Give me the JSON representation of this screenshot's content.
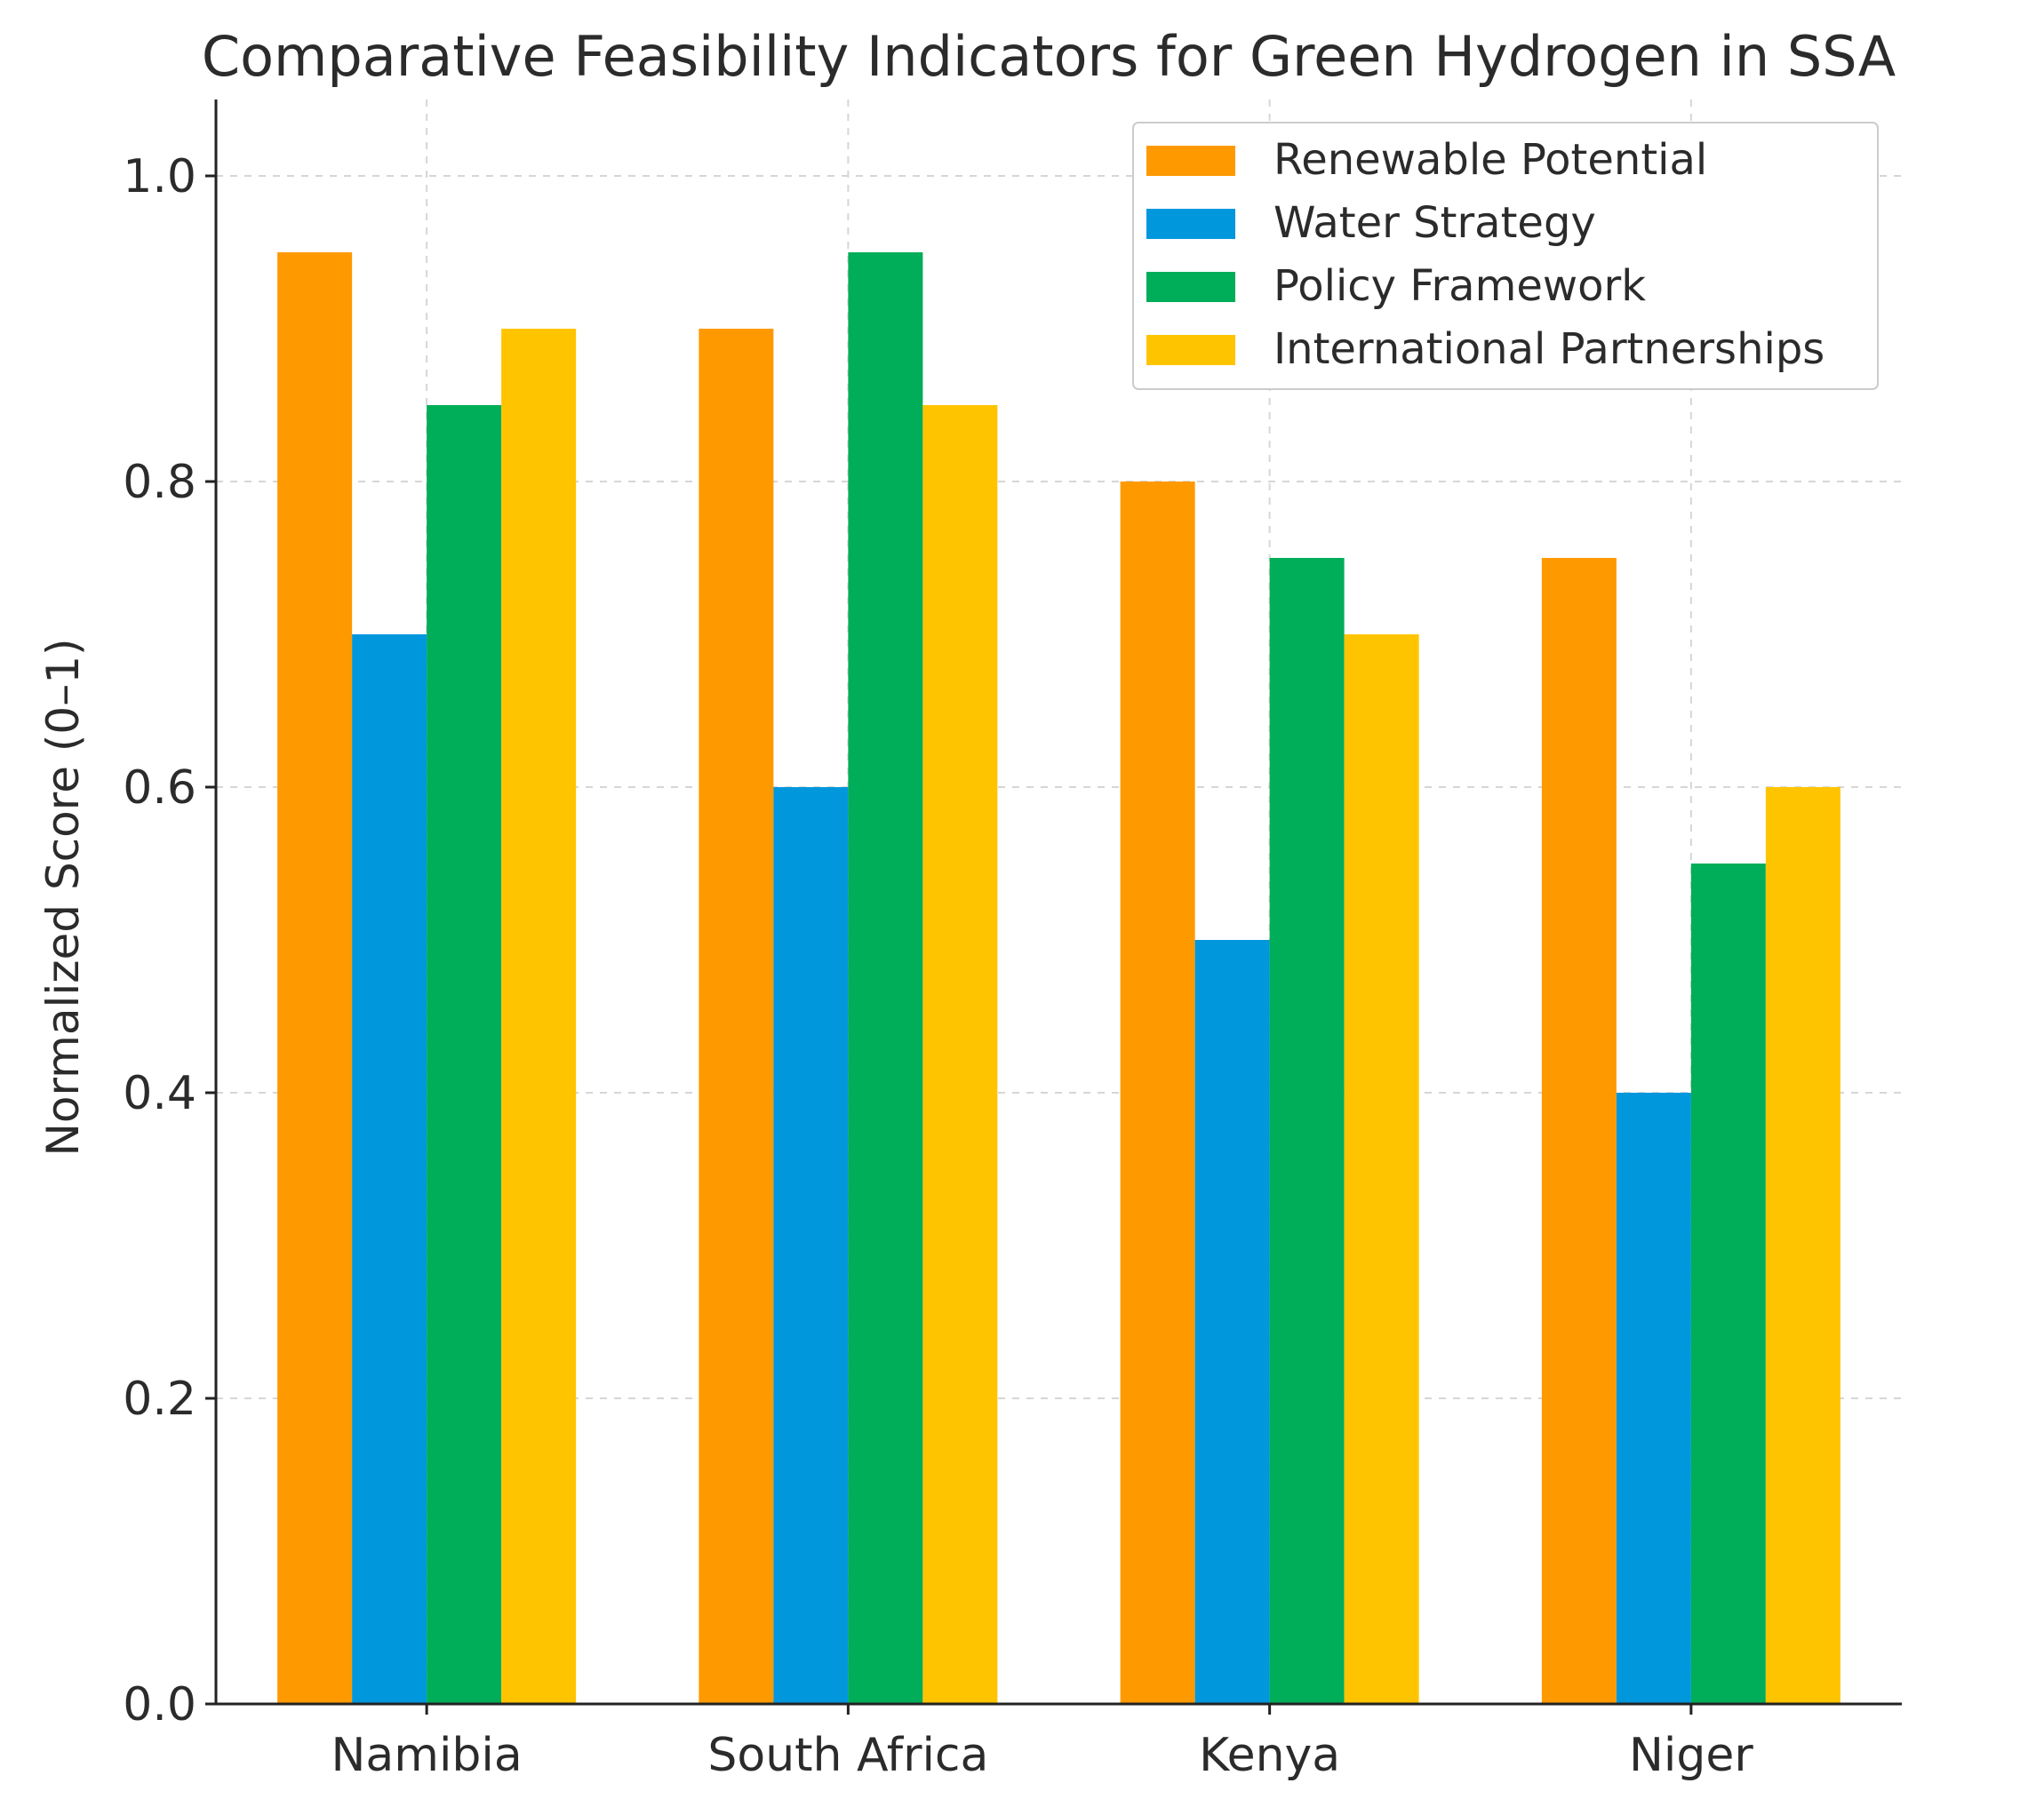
{
  "chart_data": {
    "type": "bar",
    "title": "Comparative Feasibility Indicators for Green Hydrogen in SSA",
    "xlabel": "",
    "ylabel": "Normalized Score (0–1)",
    "categories": [
      "Namibia",
      "South Africa",
      "Kenya",
      "Niger"
    ],
    "series": [
      {
        "name": "Renewable Potential",
        "color": "#FF9900",
        "values": [
          0.95,
          0.9,
          0.8,
          0.75
        ]
      },
      {
        "name": "Water Strategy",
        "color": "#0097DD",
        "values": [
          0.7,
          0.6,
          0.5,
          0.4
        ]
      },
      {
        "name": "Policy Framework",
        "color": "#00AD58",
        "values": [
          0.85,
          0.95,
          0.75,
          0.55
        ]
      },
      {
        "name": "International Partnerships",
        "color": "#FFC400",
        "values": [
          0.9,
          0.85,
          0.7,
          0.6
        ]
      }
    ],
    "yticks": [
      "0.0",
      "0.2",
      "0.4",
      "0.6",
      "0.8",
      "1.0"
    ],
    "ylim": [
      0,
      1.05
    ],
    "grid": true,
    "legend_position": "top-right"
  }
}
